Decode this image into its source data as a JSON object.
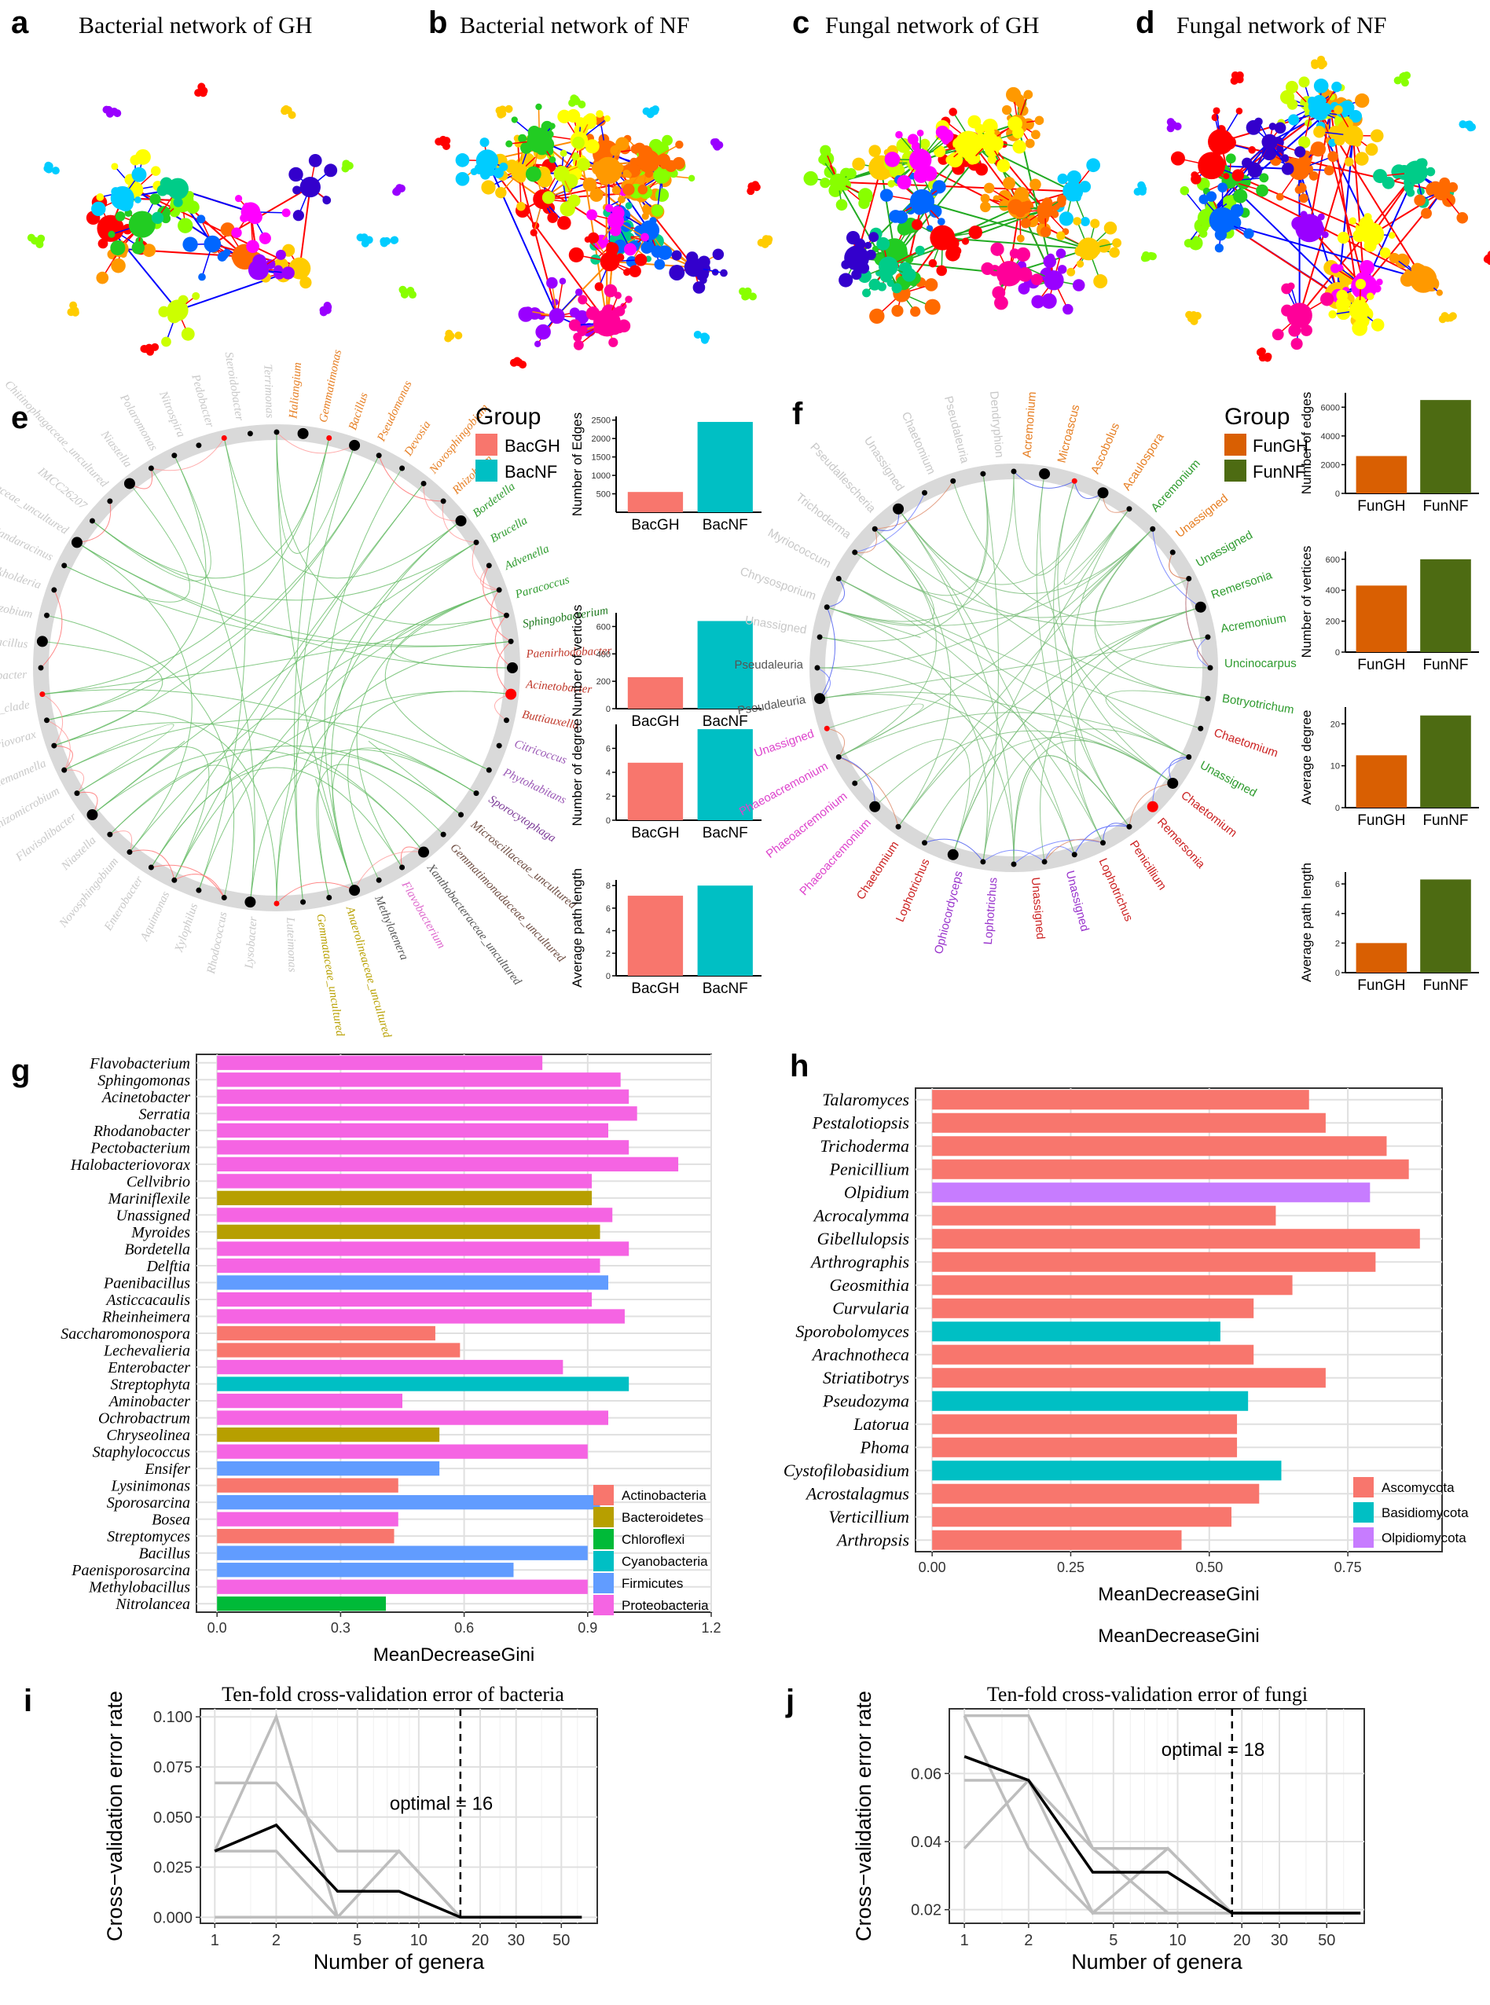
{
  "panels": {
    "a": {
      "letter": "a",
      "title": "Bacterial network of GH"
    },
    "b": {
      "letter": "b",
      "title": "Bacterial network of NF"
    },
    "c": {
      "letter": "c",
      "title": "Fungal network of GH"
    },
    "d": {
      "letter": "d",
      "title": "Fungal network of NF"
    },
    "e": {
      "letter": "e"
    },
    "f": {
      "letter": "f"
    },
    "g": {
      "letter": "g"
    },
    "h": {
      "letter": "h"
    },
    "i": {
      "letter": "i"
    },
    "j": {
      "letter": "j"
    }
  },
  "colors": {
    "network_palette": [
      "#ff0000",
      "#ff6a00",
      "#ff9900",
      "#ffcc00",
      "#ffff00",
      "#ccff00",
      "#88ff00",
      "#22cc22",
      "#00cc88",
      "#00ccff",
      "#0066ff",
      "#3300cc",
      "#9900ff",
      "#ff00ff",
      "#ff0099"
    ],
    "bac_gh": "#f8766d",
    "bac_nf": "#00bfc4",
    "fun_gh": "#d95f02",
    "fun_nf": "#4d6b12",
    "actinobacteria": "#f8766d",
    "bacteroidetes": "#b79f00",
    "chloroflexi": "#00ba38",
    "cyanobacteria": "#00bfc4",
    "firmicutes": "#619cff",
    "proteobacteria": "#f564e3",
    "ascomycota": "#f8766d",
    "basidiomycota": "#00bfc4",
    "olpidiomycota": "#c77cff"
  },
  "chord_e": {
    "legend_title": "Group",
    "legend_items": [
      "BacGH",
      "BacNF"
    ],
    "highlight_labels": [
      "Haliangium",
      "Gemmatimonas",
      "Bacillus",
      "Pseudomonas",
      "Devosia",
      "Novosphingobium",
      "Rhizobium",
      "Bordetella",
      "Brucella",
      "Advenella",
      "Paracoccus",
      "Sphingobacterium",
      "Paenirhodobacter",
      "Acinetobacter",
      "Buttiauxella",
      "Citricoccus",
      "Phytohabitans",
      "Sporocytophaga",
      "Microscillaceae_uncultured",
      "Gemmatimonadaceae_uncultured",
      "Xanthobacteraceae_uncultured",
      "Flavobacterium",
      "Methylotenera",
      "Anaerolineaceae_uncultured",
      "Gemmataceae_uncultured"
    ],
    "faded_labels": [
      "Luteimonas",
      "Lysobacter",
      "Rhodococcus",
      "Xylophilus",
      "Aquimonas",
      "Enterobacter",
      "Novosphingobium",
      "Niastella",
      "Flavisolibacter",
      "Rhizomicrobium",
      "Luedemannella",
      "Variovorax",
      "OM27_clade",
      "Dyadobacter",
      "Paenibacillus",
      "Bradyrhizobium",
      "Burkholderia",
      "Sandaracinus",
      "Gemmatimonadaceae_uncultured",
      "IMCC26207",
      "Chitinophagaceae_uncultured",
      "Niastella",
      "Polaromonas",
      "Nitrospira",
      "Pedobacter",
      "Steroidobacter",
      "Terrimonas"
    ]
  },
  "bars_e": [
    {
      "ylabel": "Number of Edges",
      "ticks": [
        "500",
        "1000",
        "1500",
        "2000",
        "2500"
      ],
      "categories": [
        "BacGH",
        "BacNF"
      ],
      "values": [
        550,
        2450
      ],
      "ymax": 2600
    },
    {
      "ylabel": "Number of vertices",
      "ticks": [
        "0",
        "200",
        "400",
        "600"
      ],
      "categories": [
        "BacGH",
        "BacNF"
      ],
      "values": [
        230,
        640
      ],
      "ymax": 700
    },
    {
      "ylabel": "Number of degree",
      "ticks": [
        "0",
        "2",
        "4",
        "6"
      ],
      "categories": [
        "BacGH",
        "BacNF"
      ],
      "values": [
        4.8,
        7.6
      ],
      "ymax": 8
    },
    {
      "ylabel": "Average path length",
      "ticks": [
        "0",
        "2",
        "4",
        "6",
        "8"
      ],
      "categories": [
        "BacGH",
        "BacNF"
      ],
      "values": [
        7.1,
        8.0
      ],
      "ymax": 8.5
    }
  ],
  "chord_f": {
    "legend_title": "Group",
    "legend_items": [
      "FunGH",
      "FunNF"
    ],
    "labels": [
      "Acremonium",
      "Microascus",
      "Ascobolus",
      "Acaulospora",
      "Acremonium",
      "Unassigned",
      "Unassigned",
      "Remersonia",
      "Acremonium",
      "Uncinocarpus",
      "Botryotrichum",
      "Chaetomium",
      "Unassigned",
      "Chaetomium",
      "Remersonia",
      "Penicillium",
      "Lophotrichus",
      "Unassigned",
      "Unassigned",
      "Lophotrichus",
      "Ophiocordyceps",
      "Lophotrichus",
      "Chaetomium",
      "Phaeoacremonium",
      "Phaeoacremonium",
      "Phaeoacremonium",
      "Unassigned",
      "Pseudaleuria",
      "Pseudaleuria",
      "Unassigned",
      "Chrysosporium",
      "Myriococcum",
      "Trichoderma",
      "Pseudallescheria",
      "Unassigned",
      "Chaetomium",
      "Pseudaleuria",
      "Dendryphion"
    ]
  },
  "bars_f": [
    {
      "ylabel": "Number of edges",
      "ticks": [
        "0",
        "2000",
        "4000",
        "6000"
      ],
      "categories": [
        "FunGH",
        "FunNF"
      ],
      "values": [
        2600,
        6500
      ],
      "ymax": 7000
    },
    {
      "ylabel": "Number of vertices",
      "ticks": [
        "0",
        "200",
        "400",
        "600"
      ],
      "categories": [
        "FunGH",
        "FunNF"
      ],
      "values": [
        430,
        600
      ],
      "ymax": 650
    },
    {
      "ylabel": "Average degree",
      "ticks": [
        "0",
        "10",
        "20"
      ],
      "categories": [
        "FunGH",
        "FunNF"
      ],
      "values": [
        12.5,
        22
      ],
      "ymax": 24
    },
    {
      "ylabel": "Average path length",
      "ticks": [
        "0",
        "2",
        "4",
        "6"
      ],
      "categories": [
        "FunGH",
        "FunNF"
      ],
      "values": [
        2.0,
        6.3
      ],
      "ymax": 6.8
    }
  ],
  "chart_data": [
    {
      "type": "bar",
      "orientation": "horizontal",
      "panel": "g",
      "categories": [
        "Flavobacterium",
        "Sphingomonas",
        "Acinetobacter",
        "Serratia",
        "Rhodanobacter",
        "Pectobacterium",
        "Halobacteriovorax",
        "Cellvibrio",
        "Mariniflexile",
        "Unassigned",
        "Myroides",
        "Bordetella",
        "Delftia",
        "Paenibacillus",
        "Asticcacaulis",
        "Rheinheimera",
        "Saccharomonospora",
        "Lechevalieria",
        "Enterobacter",
        "Streptophyta",
        "Aminobacter",
        "Ochrobactrum",
        "Chryseolinea",
        "Staphylococcus",
        "Ensifer",
        "Lysinimonas",
        "Sporosarcina",
        "Bosea",
        "Streptomyces",
        "Bacillus",
        "Paenisporosarcina",
        "Methylobacillus",
        "Nitrolancea"
      ],
      "values": [
        0.79,
        0.98,
        1.0,
        1.02,
        0.95,
        1.0,
        1.12,
        0.91,
        0.91,
        0.96,
        0.93,
        1.0,
        0.93,
        0.95,
        0.91,
        0.99,
        0.53,
        0.59,
        0.84,
        1.0,
        0.45,
        0.95,
        0.54,
        0.9,
        0.54,
        0.44,
        0.93,
        0.44,
        0.43,
        0.9,
        0.72,
        0.9,
        0.41
      ],
      "phylum": [
        "Proteobacteria",
        "Proteobacteria",
        "Proteobacteria",
        "Proteobacteria",
        "Proteobacteria",
        "Proteobacteria",
        "Proteobacteria",
        "Proteobacteria",
        "Bacteroidetes",
        "Proteobacteria",
        "Bacteroidetes",
        "Proteobacteria",
        "Proteobacteria",
        "Firmicutes",
        "Proteobacteria",
        "Proteobacteria",
        "Actinobacteria",
        "Actinobacteria",
        "Proteobacteria",
        "Cyanobacteria",
        "Proteobacteria",
        "Proteobacteria",
        "Bacteroidetes",
        "Proteobacteria",
        "Firmicutes",
        "Actinobacteria",
        "Firmicutes",
        "Proteobacteria",
        "Actinobacteria",
        "Firmicutes",
        "Firmicutes",
        "Proteobacteria",
        "Chloroflexi"
      ],
      "legend": [
        "Actinobacteria",
        "Bacteroidetes",
        "Chloroflexi",
        "Cyanobacteria",
        "Firmicutes",
        "Proteobacteria"
      ],
      "xlabel": "MeanDecreaseGini",
      "xlim": [
        -0.05,
        1.2
      ],
      "xticks": [
        "0.0",
        "0.3",
        "0.6",
        "0.9",
        "1.2"
      ],
      "xtick_values": [
        0,
        0.3,
        0.6,
        0.9,
        1.2
      ]
    },
    {
      "type": "bar",
      "orientation": "horizontal",
      "panel": "h",
      "categories": [
        "Talaromyces",
        "Pestalotiopsis",
        "Trichoderma",
        "Penicillium",
        "Olpidium",
        "Acrocalymma",
        "Gibellulopsis",
        "Arthrographis",
        "Geosmithia",
        "Curvularia",
        "Sporobolomyces",
        "Arachnotheca",
        "Striatibotrys",
        "Pseudozyma",
        "Latorua",
        "Phoma",
        "Cystofilobasidium",
        "Acrostalagmus",
        "Verticillium",
        "Arthropsis"
      ],
      "values": [
        0.68,
        0.71,
        0.82,
        0.86,
        0.79,
        0.62,
        0.88,
        0.8,
        0.65,
        0.58,
        0.52,
        0.58,
        0.71,
        0.57,
        0.55,
        0.55,
        0.63,
        0.59,
        0.54,
        0.45
      ],
      "phylum": [
        "Ascomycota",
        "Ascomycota",
        "Ascomycota",
        "Ascomycota",
        "Olpidiomycota",
        "Ascomycota",
        "Ascomycota",
        "Ascomycota",
        "Ascomycota",
        "Ascomycota",
        "Basidiomycota",
        "Ascomycota",
        "Ascomycota",
        "Basidiomycota",
        "Ascomycota",
        "Ascomycota",
        "Basidiomycota",
        "Ascomycota",
        "Ascomycota",
        "Ascomycota"
      ],
      "legend": [
        "Ascomycota",
        "Basidiomycota",
        "Olpidiomycota"
      ],
      "xlabel": "MeanDecreaseGini",
      "xlabel_repeat": "MeanDecreaseGini",
      "xlim": [
        -0.03,
        0.92
      ],
      "xticks": [
        "0.00",
        "0.25",
        "0.50",
        "0.75"
      ],
      "xtick_values": [
        0,
        0.25,
        0.5,
        0.75
      ]
    },
    {
      "type": "line",
      "panel": "i",
      "title": "Ten-fold cross-validation error of bacteria",
      "xlabel": "Number of genera",
      "ylabel": "Cross−validation error rate",
      "xscale": "log",
      "xticks": [
        "1",
        "2",
        "5",
        "10",
        "20",
        "30",
        "50"
      ],
      "xtick_values": [
        1,
        2,
        5,
        10,
        20,
        30,
        50
      ],
      "yticks": [
        "0.000",
        "0.025",
        "0.050",
        "0.075",
        "0.100"
      ],
      "ytick_values": [
        0,
        0.025,
        0.05,
        0.075,
        0.1
      ],
      "ylim": [
        -0.003,
        0.104
      ],
      "xlim": [
        0.85,
        75
      ],
      "optimal_x": 16,
      "optimal_label": "optimal = 16",
      "series": [
        {
          "name": "mean",
          "x": [
            1,
            2,
            4,
            8,
            16,
            32,
            63
          ],
          "y": [
            0.033,
            0.046,
            0.013,
            0.013,
            0.0,
            0.0,
            0.0
          ]
        },
        {
          "name": "rep1",
          "x": [
            1,
            2,
            4,
            8,
            16,
            32,
            63
          ],
          "y": [
            0.067,
            0.067,
            0.033,
            0.033,
            0.0,
            0.0,
            0.0
          ]
        },
        {
          "name": "rep2",
          "x": [
            1,
            2,
            4,
            8,
            16,
            32,
            63
          ],
          "y": [
            0.033,
            0.1,
            0.0,
            0.0,
            0.0,
            0.0,
            0.0
          ]
        },
        {
          "name": "rep3",
          "x": [
            1,
            2,
            4,
            8,
            16,
            32,
            63
          ],
          "y": [
            0.033,
            0.033,
            0.0,
            0.033,
            0.0,
            0.0,
            0.0
          ]
        },
        {
          "name": "rep4",
          "x": [
            1,
            2,
            4,
            8,
            16,
            32,
            63
          ],
          "y": [
            0.0,
            0.0,
            0.0,
            0.0,
            0.0,
            0.0,
            0.0
          ]
        }
      ]
    },
    {
      "type": "line",
      "panel": "j",
      "title": "Ten-fold cross-validation error of fungi",
      "xlabel": "Number of genera",
      "ylabel": "Cross−validation error rate",
      "xscale": "log",
      "xticks": [
        "1",
        "2",
        "5",
        "10",
        "20",
        "30",
        "50"
      ],
      "xtick_values": [
        1,
        2,
        5,
        10,
        20,
        30,
        50
      ],
      "yticks": [
        "0.02",
        "0.04",
        "0.06"
      ],
      "ytick_values": [
        0.02,
        0.04,
        0.06
      ],
      "ylim": [
        0.016,
        0.079
      ],
      "xlim": [
        0.85,
        75
      ],
      "optimal_x": 18,
      "optimal_label": "optimal = 18",
      "series": [
        {
          "name": "mean",
          "x": [
            1,
            2,
            4,
            9,
            18,
            36,
            72
          ],
          "y": [
            0.065,
            0.058,
            0.031,
            0.031,
            0.019,
            0.019,
            0.019
          ]
        },
        {
          "name": "rep1",
          "x": [
            1,
            2,
            4,
            9,
            18,
            36,
            72
          ],
          "y": [
            0.077,
            0.077,
            0.038,
            0.038,
            0.019,
            0.019,
            0.019
          ]
        },
        {
          "name": "rep2",
          "x": [
            1,
            2,
            4,
            9,
            18,
            36,
            72
          ],
          "y": [
            0.038,
            0.058,
            0.019,
            0.038,
            0.019,
            0.019,
            0.019
          ]
        },
        {
          "name": "rep3",
          "x": [
            1,
            2,
            4,
            9,
            18,
            36,
            72
          ],
          "y": [
            0.058,
            0.058,
            0.038,
            0.019,
            0.019,
            0.019,
            0.019
          ]
        },
        {
          "name": "rep4",
          "x": [
            1,
            2,
            4,
            9,
            18,
            36,
            72
          ],
          "y": [
            0.077,
            0.038,
            0.019,
            0.019,
            0.019,
            0.019,
            0.019
          ]
        }
      ]
    }
  ]
}
